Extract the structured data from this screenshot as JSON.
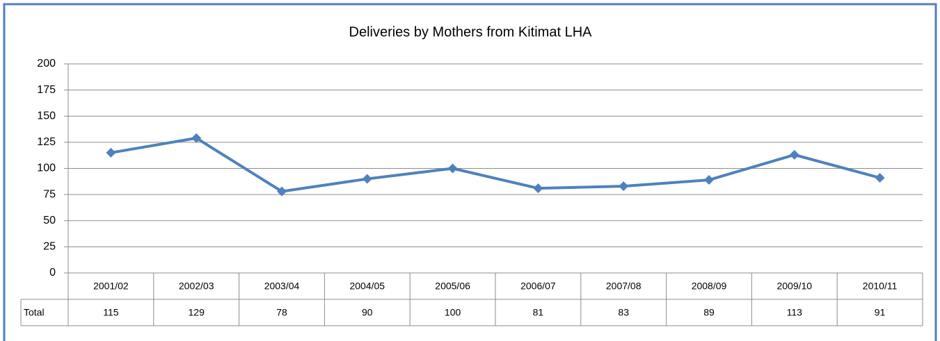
{
  "chart_data": {
    "type": "line",
    "title": "Deliveries by Mothers from Kitimat LHA",
    "categories": [
      "2001/02",
      "2002/03",
      "2003/04",
      "2004/05",
      "2005/06",
      "2006/07",
      "2007/08",
      "2008/09",
      "2009/10",
      "2010/11"
    ],
    "series": [
      {
        "name": "Total",
        "color": "#4f81bd",
        "values": [
          115,
          129,
          78,
          90,
          100,
          81,
          83,
          89,
          113,
          91
        ]
      }
    ],
    "ylim": [
      0,
      200
    ],
    "yticks": [
      0,
      25,
      50,
      75,
      100,
      125,
      150,
      175,
      200
    ],
    "grid": true
  }
}
